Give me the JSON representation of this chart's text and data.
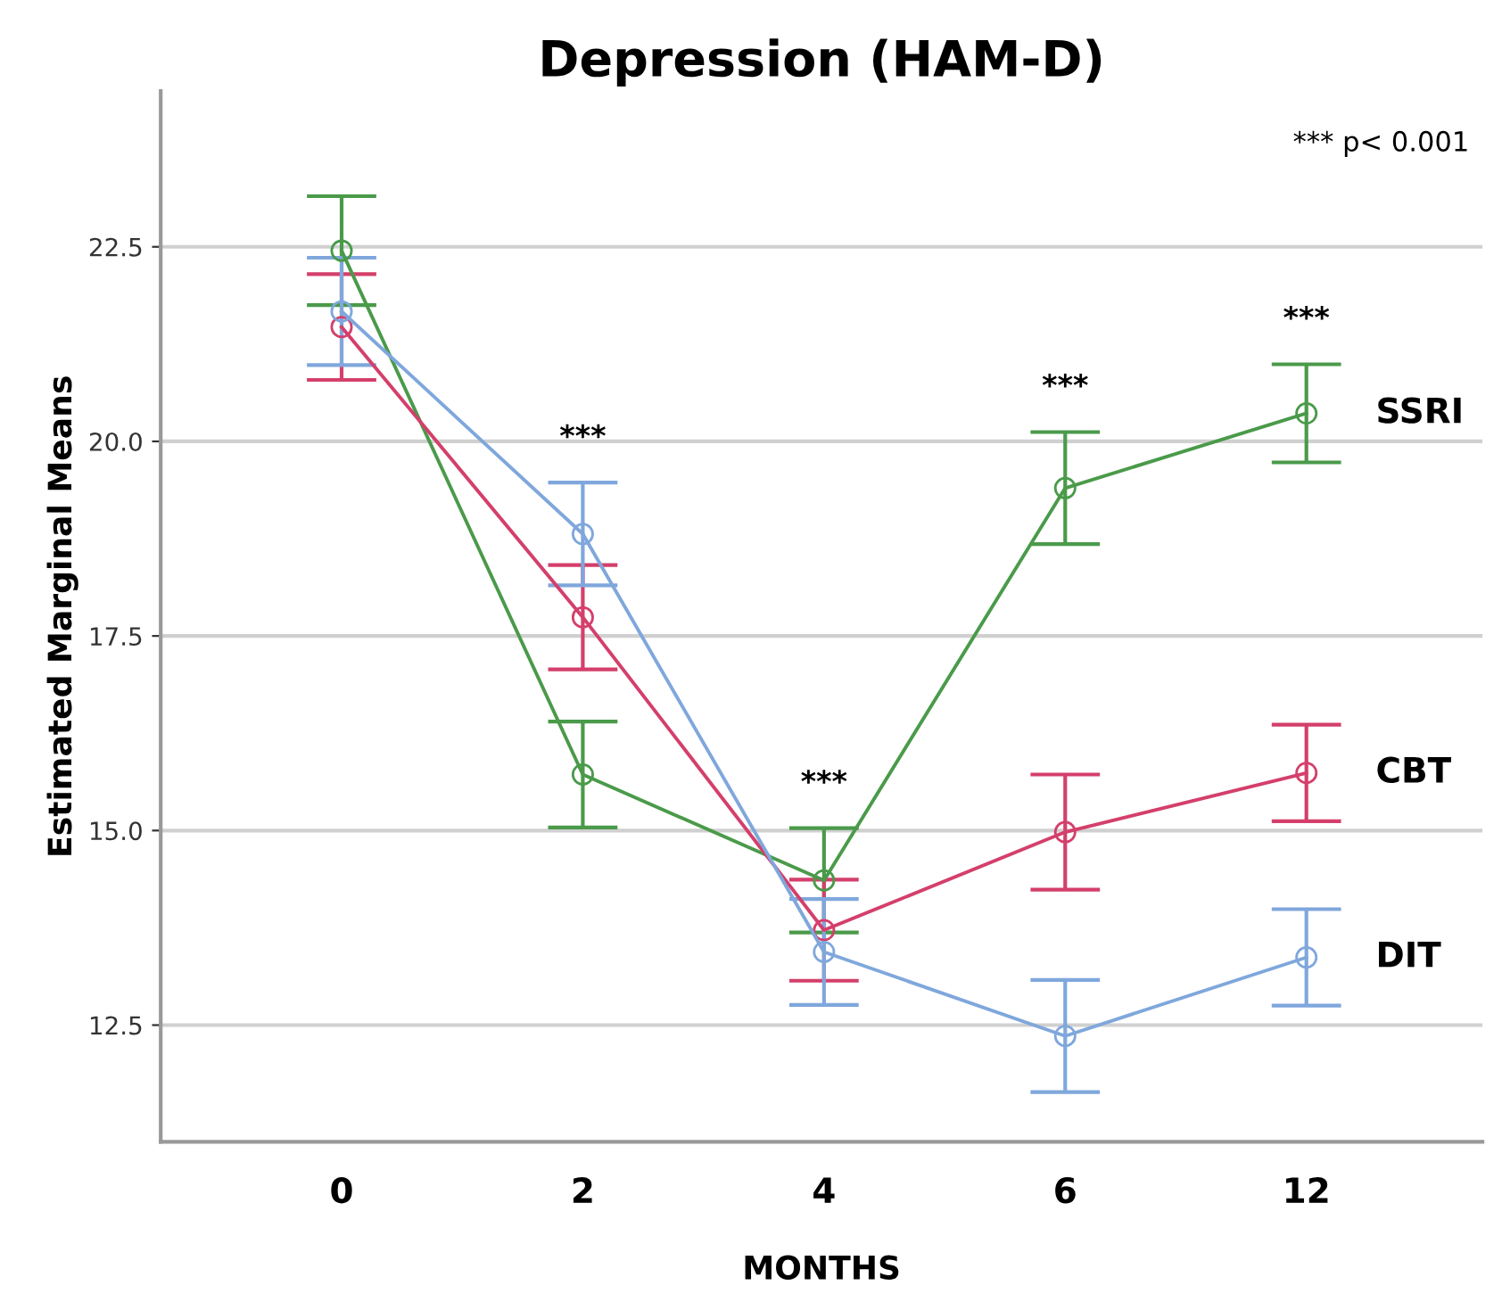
{
  "chart_data": {
    "type": "line",
    "title": "Depression (HAM-D)",
    "xlabel": "MONTHS",
    "ylabel": "Estimated Marginal Means",
    "categories": [
      "0",
      "2",
      "4",
      "6",
      "12"
    ],
    "series": [
      {
        "name": "SSRI",
        "color": "#4a9a4a",
        "values": [
          22.45,
          15.72,
          14.36,
          19.4,
          20.36
        ],
        "errors": [
          0.7,
          0.68,
          0.67,
          0.72,
          0.63
        ]
      },
      {
        "name": "CBT",
        "color": "#d43f6b",
        "values": [
          21.47,
          17.74,
          13.72,
          14.98,
          15.74
        ],
        "errors": [
          0.68,
          0.67,
          0.65,
          0.74,
          0.62
        ]
      },
      {
        "name": "DIT",
        "color": "#7fa7dc",
        "values": [
          21.67,
          18.81,
          13.44,
          12.36,
          13.37
        ],
        "errors": [
          0.69,
          0.66,
          0.68,
          0.72,
          0.62
        ]
      }
    ],
    "ylim": [
      11,
      24.5
    ],
    "yticks": [
      12.5,
      {
        "value": 15,
        "label": "15.0"
      },
      17.5,
      {
        "value": 20,
        "label": "20.0"
      },
      22.5
    ],
    "grid": "y",
    "legend": false,
    "marker": "circle",
    "line_style": "solid",
    "annotations": [
      "***",
      "***",
      "***",
      "***",
      "*** p< 0.001"
    ]
  }
}
